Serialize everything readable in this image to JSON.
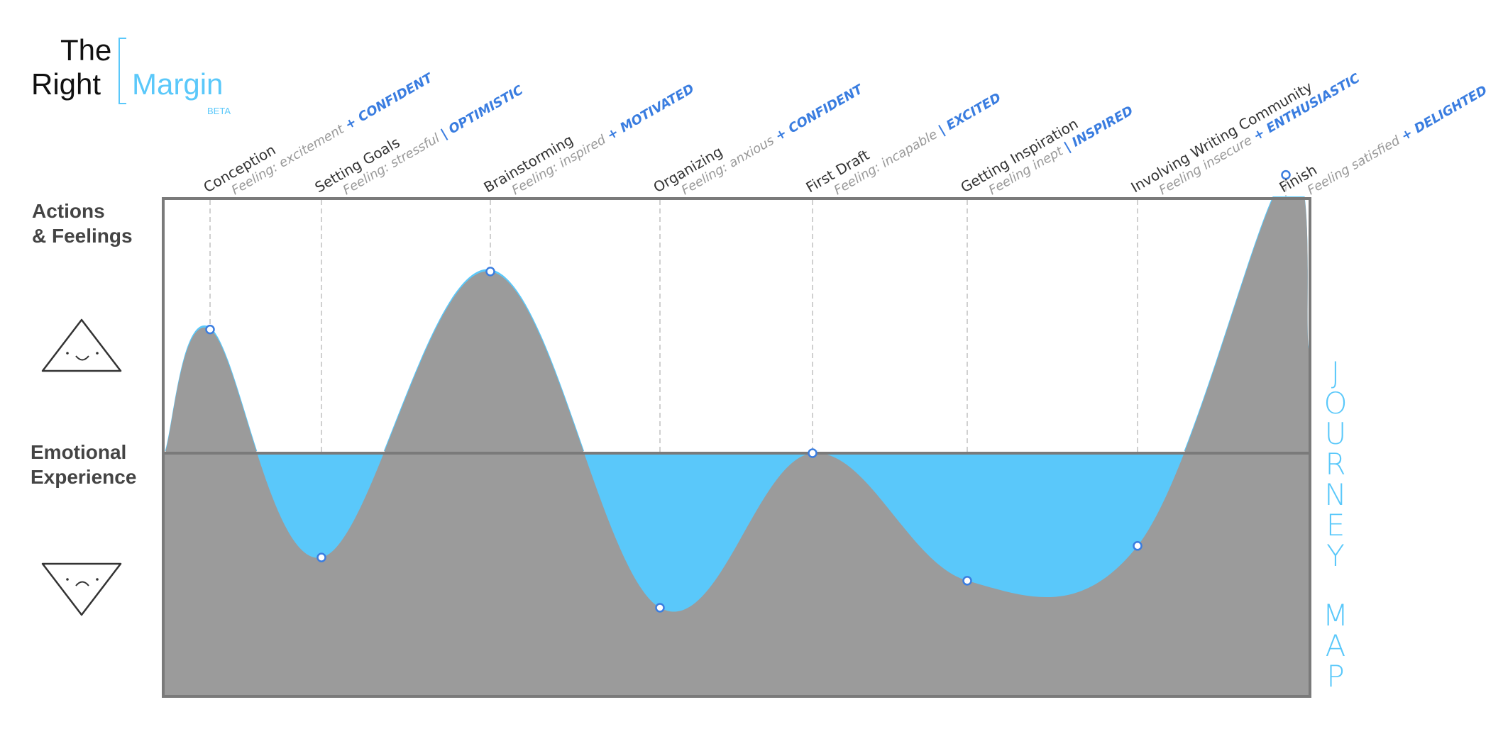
{
  "logo": {
    "the": "The",
    "right": "Right",
    "margin": "Margin",
    "beta": "BETA"
  },
  "labels": {
    "actions_line1": "Actions",
    "actions_line2": "& Feelings",
    "emotional_line1": "Emotional",
    "emotional_line2": "Experience"
  },
  "icons": {
    "happy": "happy-triangle-icon",
    "sad": "sad-triangle-icon"
  },
  "vertical_title": {
    "word1": "JOURNEY",
    "word2": "MAP"
  },
  "colors": {
    "accent": "#5ac8fa",
    "accent_text": "#3a7de0",
    "area": "#9b9b9b",
    "frame": "#7a7a7a"
  },
  "steps": [
    {
      "title": "Conception",
      "feeling_prefix": "Feeling: excitement",
      "feeling_accent": "+ CONFIDENT",
      "y": 0.32
    },
    {
      "title": "Setting Goals",
      "feeling_prefix": "Feeling: stressful",
      "feeling_accent": "| OPTIMISTIC",
      "y": -0.27
    },
    {
      "title": "Brainstorming",
      "feeling_prefix": "Feeling: inspired",
      "feeling_accent": "+ MOTIVATED",
      "y": 0.47
    },
    {
      "title": "Organizing",
      "feeling_prefix": "Feeling: anxious",
      "feeling_accent": "+ CONFIDENT",
      "y": -0.4
    },
    {
      "title": "First Draft",
      "feeling_prefix": "Feeling: incapable",
      "feeling_accent": "| EXCITED",
      "y": 0.0
    },
    {
      "title": "Getting Inspiration",
      "feeling_prefix": "Feeling inept",
      "feeling_accent": "| INSPIRED",
      "y": -0.33
    },
    {
      "title": "Involving Writing Community",
      "feeling_prefix": "Feeling insecure",
      "feeling_accent": "+ ENTHUSIASTIC",
      "y": -0.24
    },
    {
      "title": "Finish",
      "feeling_prefix": "Feeling satisfied",
      "feeling_accent": "+ DELIGHTED",
      "y": 0.72
    }
  ]
}
